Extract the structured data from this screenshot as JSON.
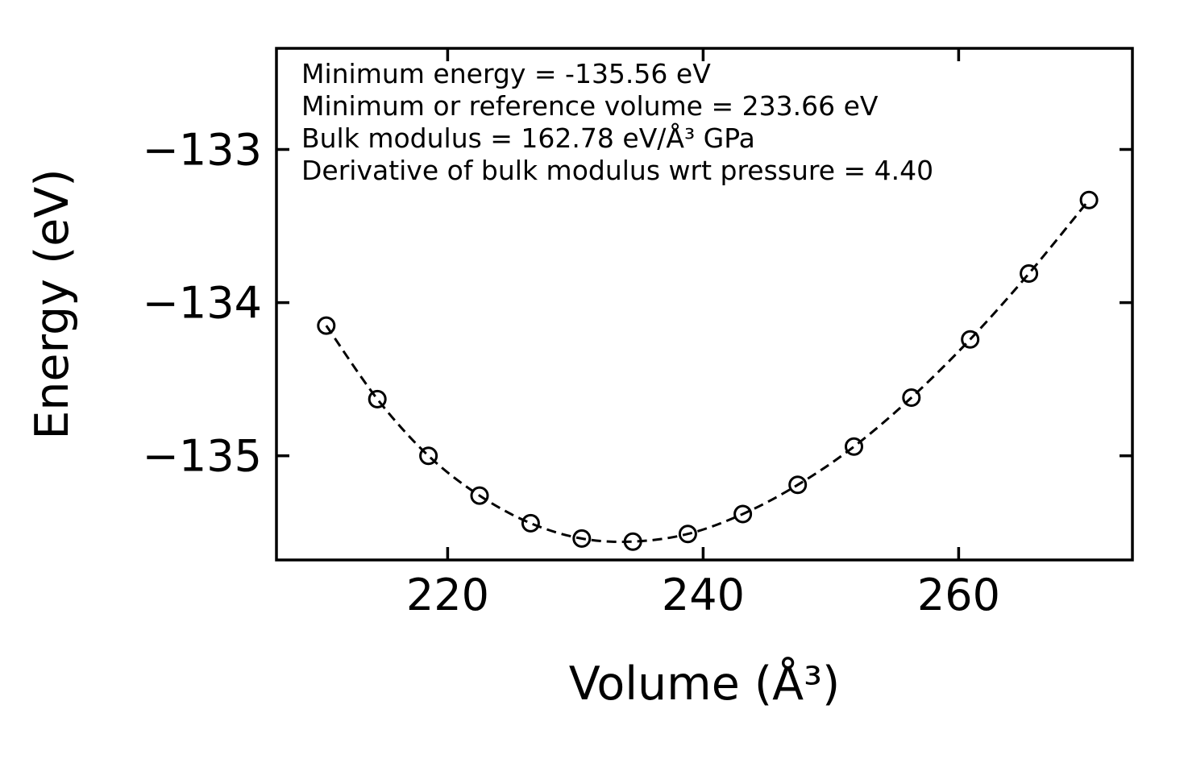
{
  "figure": {
    "background": "#ffffff",
    "foreground": "#000000"
  },
  "chart_data": {
    "type": "scatter",
    "title": "",
    "xlabel": "Volume (Å³)",
    "ylabel": "Energy (eV)",
    "xlim": [
      206.6,
      273.6
    ],
    "ylim": [
      -135.68,
      -132.34
    ],
    "xticks": [
      220,
      240,
      260
    ],
    "xtick_labels": [
      "220",
      "240",
      "260"
    ],
    "yticks": [
      -133,
      -134,
      -135
    ],
    "ytick_labels": [
      "−133",
      "−134",
      "−135"
    ],
    "grid": false,
    "legend": "none",
    "annotation_lines": [
      "Minimum energy = -135.56 eV",
      "Minimum or reference volume = 233.66 eV",
      "Bulk modulus = 162.78 eV/Å³ GPa",
      "Derivative of bulk modulus wrt pressure = 4.40"
    ],
    "fit_results": {
      "minimum_energy_eV": -135.56,
      "reference_volume": 233.66,
      "bulk_modulus": 162.78,
      "bulk_modulus_pressure_derivative": 4.4
    },
    "series": [
      {
        "name": "equation-of-state",
        "marker": "open-circle",
        "line": "dashed",
        "color": "#000000",
        "x": [
          210.5,
          214.5,
          218.5,
          222.5,
          226.5,
          230.5,
          234.5,
          238.8,
          243.1,
          247.4,
          251.8,
          256.3,
          260.9,
          265.5,
          270.2
        ],
        "y": [
          -134.15,
          -134.63,
          -135.0,
          -135.26,
          -135.44,
          -135.54,
          -135.56,
          -135.51,
          -135.38,
          -135.19,
          -134.94,
          -134.62,
          -134.24,
          -133.81,
          -133.33
        ]
      }
    ]
  }
}
